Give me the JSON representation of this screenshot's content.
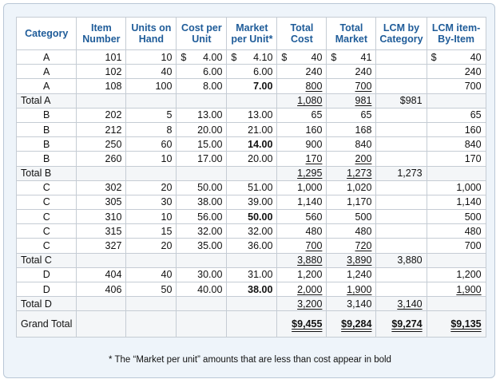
{
  "headers": {
    "category": "Category",
    "item_number": "Item Number",
    "units_on_hand": "Units on Hand",
    "cost_per_unit": "Cost per Unit",
    "market_per_unit": "Market per Unit*",
    "total_cost": "Total Cost",
    "total_market": "Total Market",
    "lcm_by_category": "LCM by Category",
    "lcm_item_by_item": "LCM item-By-Item"
  },
  "rows": [
    {
      "type": "item",
      "category": "A",
      "item": "101",
      "units": "10",
      "cost_sym": "$",
      "cost": "4.00",
      "mkt_sym": "$",
      "market": "4.10",
      "market_bold": false,
      "tc_sym": "$",
      "total_cost": "40",
      "tm_sym": "$",
      "total_market": "41",
      "lcm_cat": "",
      "li_sym": "$",
      "lcm_item": "40"
    },
    {
      "type": "item",
      "category": "A",
      "item": "102",
      "units": "40",
      "cost": "6.00",
      "market": "6.00",
      "market_bold": false,
      "total_cost": "240",
      "total_market": "240",
      "lcm_cat": "",
      "lcm_item": "240"
    },
    {
      "type": "item",
      "category": "A",
      "item": "108",
      "units": "100",
      "cost": "8.00",
      "market": "7.00",
      "market_bold": true,
      "total_cost": "800",
      "tc_u": "single",
      "total_market": "700",
      "tm_u": "single",
      "lcm_cat": "",
      "lcm_item": "700"
    },
    {
      "type": "total",
      "label": "Total A",
      "total_cost": "1,080",
      "tc_u": "single",
      "total_market": "981",
      "tm_u": "single",
      "lcm_cat": "$981",
      "lcm_item": ""
    },
    {
      "type": "item",
      "category": "B",
      "item": "202",
      "units": "5",
      "cost": "13.00",
      "market": "13.00",
      "market_bold": false,
      "total_cost": "65",
      "total_market": "65",
      "lcm_cat": "",
      "lcm_item": "65"
    },
    {
      "type": "item",
      "category": "B",
      "item": "212",
      "units": "8",
      "cost": "20.00",
      "market": "21.00",
      "market_bold": false,
      "total_cost": "160",
      "total_market": "168",
      "lcm_cat": "",
      "lcm_item": "160"
    },
    {
      "type": "item",
      "category": "B",
      "item": "250",
      "units": "60",
      "cost": "15.00",
      "market": "14.00",
      "market_bold": true,
      "total_cost": "900",
      "total_market": "840",
      "lcm_cat": "",
      "lcm_item": "840"
    },
    {
      "type": "item",
      "category": "B",
      "item": "260",
      "units": "10",
      "cost": "17.00",
      "market": "20.00",
      "market_bold": false,
      "total_cost": "170",
      "tc_u": "single",
      "total_market": "200",
      "tm_u": "single",
      "lcm_cat": "",
      "lcm_item": "170"
    },
    {
      "type": "total",
      "label": "Total B",
      "total_cost": "1,295",
      "tc_u": "single",
      "total_market": "1,273",
      "tm_u": "single",
      "lcm_cat": "1,273",
      "lcm_item": ""
    },
    {
      "type": "item",
      "category": "C",
      "item": "302",
      "units": "20",
      "cost": "50.00",
      "market": "51.00",
      "market_bold": false,
      "total_cost": "1,000",
      "total_market": "1,020",
      "lcm_cat": "",
      "lcm_item": "1,000"
    },
    {
      "type": "item",
      "category": "C",
      "item": "305",
      "units": "30",
      "cost": "38.00",
      "market": "39.00",
      "market_bold": false,
      "total_cost": "1,140",
      "total_market": "1,170",
      "lcm_cat": "",
      "lcm_item": "1,140"
    },
    {
      "type": "item",
      "category": "C",
      "item": "310",
      "units": "10",
      "cost": "56.00",
      "market": "50.00",
      "market_bold": true,
      "total_cost": "560",
      "total_market": "500",
      "lcm_cat": "",
      "lcm_item": "500"
    },
    {
      "type": "item",
      "category": "C",
      "item": "315",
      "units": "15",
      "cost": "32.00",
      "market": "32.00",
      "market_bold": false,
      "total_cost": "480",
      "total_market": "480",
      "lcm_cat": "",
      "lcm_item": "480"
    },
    {
      "type": "item",
      "category": "C",
      "item": "327",
      "units": "20",
      "cost": "35.00",
      "market": "36.00",
      "market_bold": false,
      "total_cost": "700",
      "tc_u": "single",
      "total_market": "720",
      "tm_u": "single",
      "lcm_cat": "",
      "lcm_item": "700"
    },
    {
      "type": "total",
      "label": "Total C",
      "total_cost": "3,880",
      "tc_u": "single",
      "total_market": "3,890",
      "tm_u": "single",
      "lcm_cat": "3,880",
      "lcm_item": ""
    },
    {
      "type": "item",
      "category": "D",
      "item": "404",
      "units": "40",
      "cost": "30.00",
      "market": "31.00",
      "market_bold": false,
      "total_cost": "1,200",
      "total_market": "1,240",
      "lcm_cat": "",
      "lcm_item": "1,200"
    },
    {
      "type": "item",
      "category": "D",
      "item": "406",
      "units": "50",
      "cost": "40.00",
      "market": "38.00",
      "market_bold": true,
      "total_cost": "2,000",
      "tc_u": "single",
      "total_market": "1,900",
      "tm_u": "single",
      "lcm_cat": "",
      "lcm_item": "1,900",
      "li_u": "single"
    },
    {
      "type": "total",
      "label": "Total D",
      "total_cost": "3,200",
      "tc_u": "single",
      "total_market": "3,140",
      "lcm_cat": "3,140",
      "lcm_cat_u": "single",
      "lcm_item": ""
    },
    {
      "type": "grand",
      "label": "Grand Total",
      "total_cost": "$9,455",
      "total_market": "$9,284",
      "lcm_cat": "$9,274",
      "lcm_item": "$9,135"
    }
  ],
  "footnote": "* The “Market per unit” amounts that are less than cost appear in bold"
}
